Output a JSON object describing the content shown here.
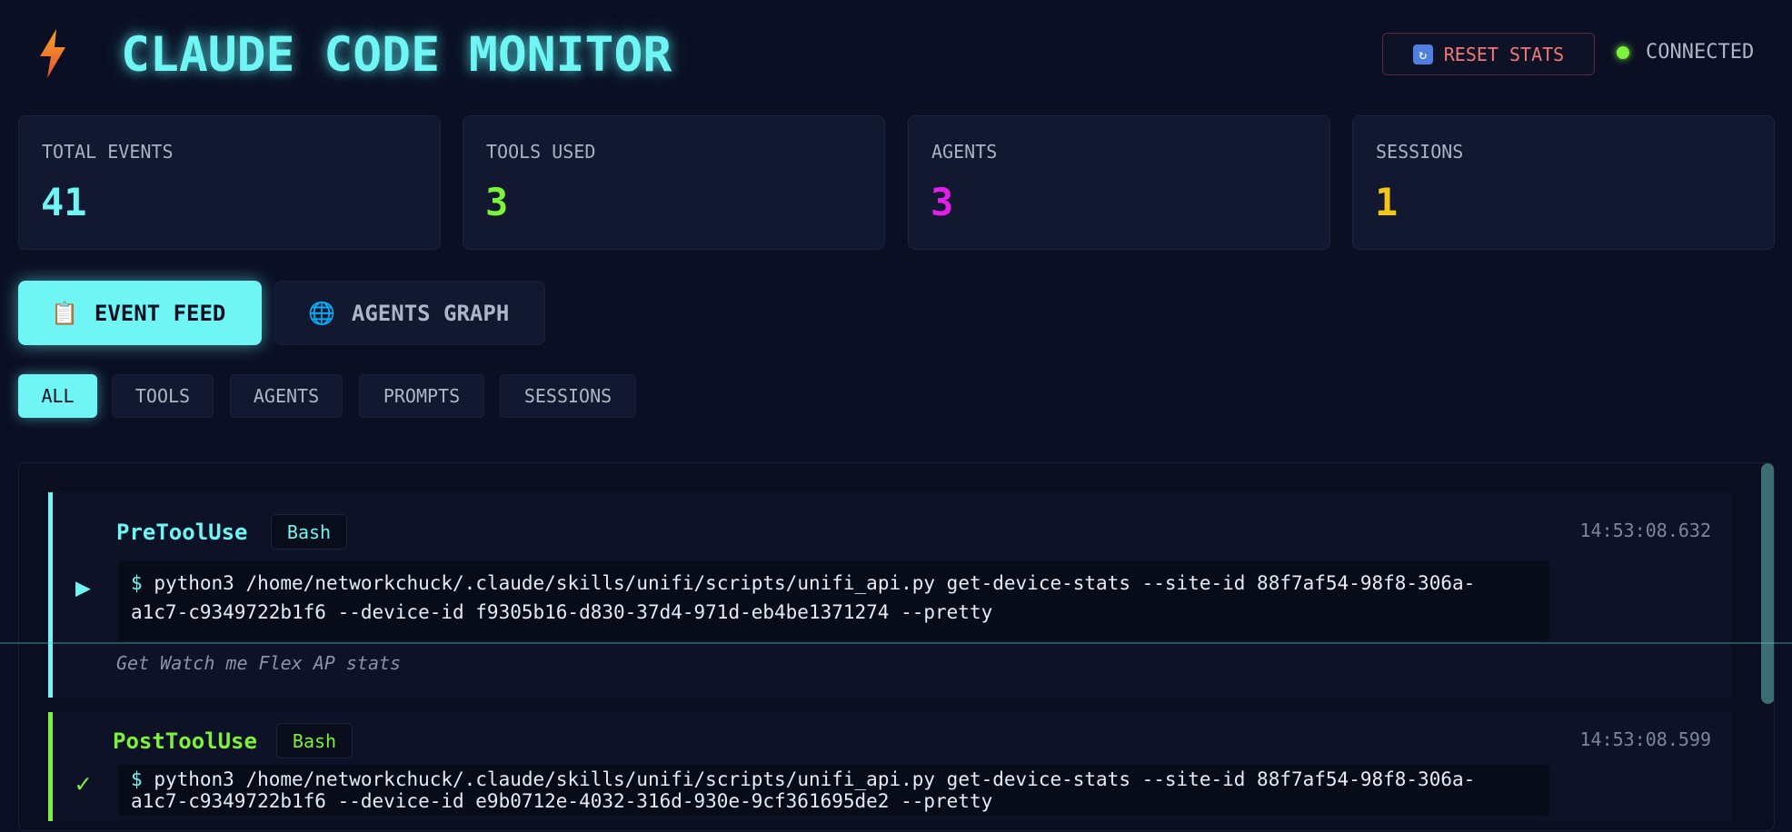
{
  "header": {
    "logo_icon": "lightning-bolt-icon",
    "title": "CLAUDE CODE MONITOR",
    "reset_button": {
      "icon": "refresh-icon",
      "label": "RESET STATS"
    },
    "status": {
      "label": "CONNECTED",
      "color": "#7cf23c"
    }
  },
  "stats": [
    {
      "label": "TOTAL EVENTS",
      "value": "41",
      "color": "#6ff6f4"
    },
    {
      "label": "TOOLS USED",
      "value": "3",
      "color": "#7cf23c"
    },
    {
      "label": "AGENTS",
      "value": "3",
      "color": "#e020e8"
    },
    {
      "label": "SESSIONS",
      "value": "1",
      "color": "#f5c518"
    }
  ],
  "tabs": [
    {
      "label": "EVENT FEED",
      "icon": "clipboard-icon",
      "active": true
    },
    {
      "label": "AGENTS GRAPH",
      "icon": "globe-icon",
      "active": false
    }
  ],
  "filters": [
    {
      "label": "ALL",
      "active": true
    },
    {
      "label": "TOOLS",
      "active": false
    },
    {
      "label": "AGENTS",
      "active": false
    },
    {
      "label": "PROMPTS",
      "active": false
    },
    {
      "label": "SESSIONS",
      "active": false
    }
  ],
  "events": [
    {
      "type": "PreToolUse",
      "tool": "Bash",
      "timestamp": "14:53:08.632",
      "color": "#6ff6f4",
      "marker": "▶",
      "command_prefix": "$",
      "command_line1": "python3 /home/networkchuck/.claude/skills/unifi/scripts/unifi_api.py get-device-stats --site-id 88f7af54-98f8-306a-",
      "command_line2": "a1c7-c9349722b1f6 --device-id f9305b16-d830-37d4-971d-eb4be1371274 --pretty",
      "description": "Get Watch me Flex AP stats"
    },
    {
      "type": "PostToolUse",
      "tool": "Bash",
      "timestamp": "14:53:08.599",
      "color": "#7cf23c",
      "marker": "✓",
      "command_prefix": "$",
      "command_line1": "python3 /home/networkchuck/.claude/skills/unifi/scripts/unifi_api.py get-device-stats --site-id 88f7af54-98f8-306a-",
      "command_line2": "a1c7-c9349722b1f6 --device-id e9b0712e-4032-316d-930e-9cf361695de2 --pretty"
    }
  ]
}
